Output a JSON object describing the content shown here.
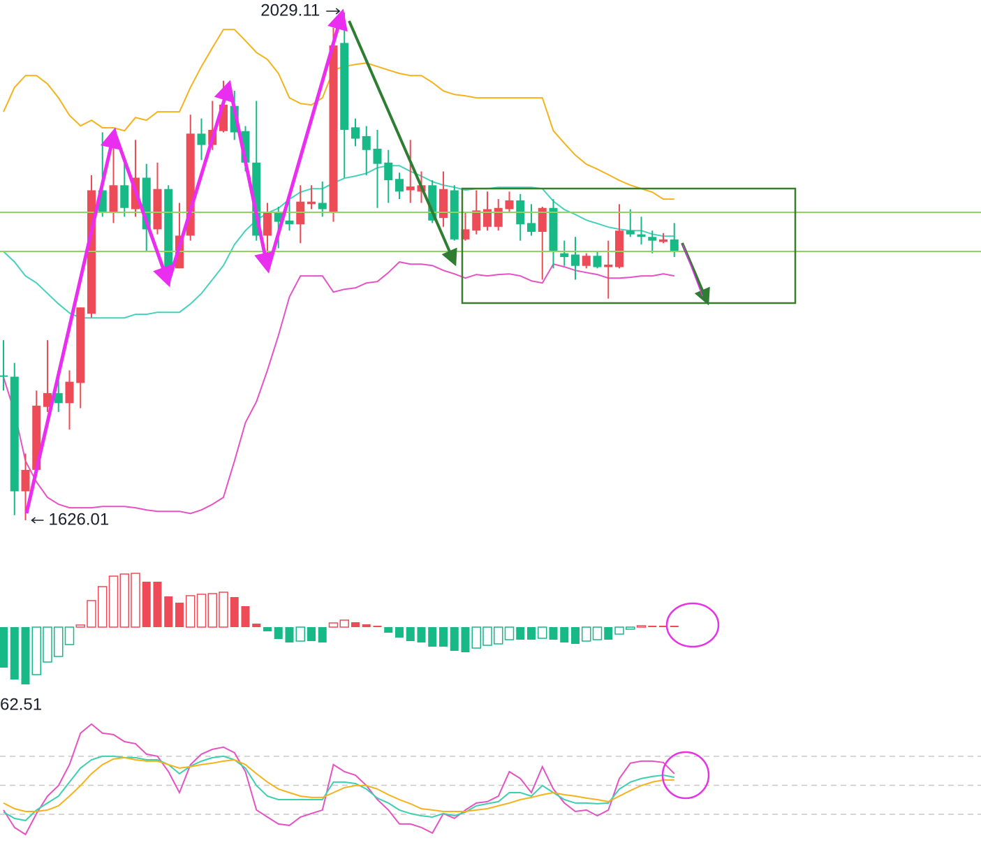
{
  "chart_data": [
    {
      "type": "candlestick",
      "annotations": [
        "2029.11",
        "1626.01"
      ],
      "up_color": "#ec4b57",
      "down_color": "#17b987",
      "ylim": [
        1595.5,
        2039.1
      ],
      "open": [
        1741,
        1740,
        1649,
        1666,
        1716,
        1727,
        1719,
        1735,
        1790,
        1888,
        1870,
        1892,
        1873,
        1898,
        1857,
        1889,
        1826,
        1852,
        1933,
        1924,
        1935,
        1955,
        1935,
        1910,
        1852,
        1870,
        1864,
        1861,
        1877,
        1878,
        1870,
        2005,
        1938,
        1931,
        1921,
        1910,
        1897,
        1888,
        1887,
        1892,
        1866,
        1888,
        1849,
        1856,
        1859,
        1859,
        1873,
        1880,
        1862,
        1855,
        1874,
        1838,
        1837,
        1828,
        1836,
        1827,
        1827,
        1856,
        1853,
        1851,
        1847,
        1849
      ],
      "high": [
        1769,
        1751,
        1679,
        1729,
        1769,
        1740,
        1745,
        1795,
        1900,
        1934,
        1934,
        1914,
        1928,
        1909,
        1910,
        1892,
        1878,
        1948,
        1945,
        1959,
        1975,
        1967,
        1939,
        1959,
        1878,
        1875,
        1881,
        1892,
        1892,
        1895,
        2017,
        2029.11,
        1945,
        1939,
        1936,
        1920,
        1902,
        1928,
        1903,
        1896,
        1903,
        1892,
        1870,
        1888,
        1887,
        1881,
        1887,
        1885,
        1877,
        1875,
        1881,
        1848,
        1851,
        1838,
        1839,
        1848,
        1877,
        1873,
        1867,
        1856,
        1854,
        1862
      ],
      "low": [
        1729,
        1630,
        1626.01,
        1662,
        1712,
        1712,
        1698,
        1715,
        1787,
        1867,
        1862,
        1867,
        1867,
        1839,
        1853,
        1820,
        1826,
        1848,
        1912,
        1920,
        1934,
        1928,
        1903,
        1848,
        1828,
        1842,
        1856,
        1846,
        1873,
        1867,
        1863,
        1898,
        1923,
        1900,
        1874,
        1878,
        1881,
        1878,
        1878,
        1862,
        1859,
        1848,
        1848,
        1853,
        1856,
        1856,
        1870,
        1848,
        1852,
        1817,
        1826,
        1828,
        1817,
        1826,
        1826,
        1802,
        1826,
        1851,
        1845,
        1838,
        1846,
        1835
      ],
      "close": [
        1740,
        1649,
        1666,
        1717,
        1727,
        1719,
        1736,
        1795,
        1888,
        1870,
        1892,
        1874,
        1898,
        1857,
        1889,
        1826,
        1852,
        1933,
        1924,
        1936,
        1956,
        1934,
        1910,
        1852,
        1870,
        1863,
        1861,
        1879,
        1879,
        1873,
        2003,
        1936,
        1929,
        1920,
        1909,
        1896,
        1887,
        1891,
        1892,
        1864,
        1889,
        1849,
        1857,
        1872,
        1873,
        1874,
        1880,
        1861,
        1855,
        1874,
        1839,
        1835,
        1828,
        1836,
        1827,
        1829,
        1856,
        1853,
        1851,
        1848,
        1849,
        1839
      ],
      "series": [
        {
          "color": "#f5b21b",
          "values": [
            1950.3,
            1969.7,
            1979.1,
            1979.1,
            1972.5,
            1961.4,
            1947.5,
            1939.2,
            1943.6,
            1937.6,
            1937.6,
            1935.3,
            1945.8,
            1943.6,
            1950.3,
            1950.3,
            1950.3,
            1969.7,
            1986.3,
            2001.3,
            2015.7,
            2015.7,
            2006.8,
            1997.4,
            1991.9,
            1980.8,
            1961.4,
            1956.9,
            1955.8,
            1961.4,
            1983.5,
            1986.3,
            1988,
            1989.1,
            1986.3,
            1983.5,
            1980.8,
            1979.1,
            1979.1,
            1973.6,
            1966.9,
            1964.1,
            1963,
            1961.4,
            1961.4,
            1961.4,
            1961.4,
            1961.4,
            1961.4,
            1961.4,
            1935.3,
            1925.3,
            1915.9,
            1908.7,
            1904.8,
            1900.4,
            1895.9,
            1892.1,
            1889.3,
            1886.5,
            1881,
            1881
          ]
        },
        {
          "color": "#45d1bb",
          "values": [
            1839.4,
            1831.1,
            1820,
            1814.4,
            1806.1,
            1797.8,
            1790.6,
            1786.7,
            1786.7,
            1786.7,
            1786.7,
            1786.7,
            1789.5,
            1789.5,
            1791.1,
            1791.1,
            1791.1,
            1797.8,
            1806.1,
            1817.2,
            1828.3,
            1844.9,
            1856,
            1864.3,
            1869.9,
            1873.8,
            1880.9,
            1886.5,
            1889.3,
            1889.3,
            1893.7,
            1897.6,
            1899.3,
            1901.5,
            1905.9,
            1907.6,
            1907.6,
            1903.1,
            1899.3,
            1894.8,
            1892.1,
            1890.4,
            1888.2,
            1889.3,
            1889.3,
            1890.4,
            1890.4,
            1890.4,
            1890.4,
            1889.3,
            1879.3,
            1872.7,
            1868.8,
            1864.3,
            1861.6,
            1858.8,
            1857.1,
            1856,
            1856,
            1853.2,
            1851.6,
            1851.6
          ]
        },
        {
          "color": "#e552c4",
          "values": [
            1739.6,
            1711.8,
            1673,
            1656.4,
            1644.2,
            1638.7,
            1635.9,
            1635.9,
            1635.9,
            1637,
            1637,
            1637,
            1635.9,
            1634.2,
            1633.1,
            1633.1,
            1633.1,
            1631.4,
            1634.2,
            1638.7,
            1644.2,
            1673,
            1703.5,
            1720.2,
            1745.1,
            1772.8,
            1803.3,
            1820,
            1820,
            1820,
            1807.2,
            1809.4,
            1810.5,
            1814.4,
            1815.5,
            1822.7,
            1831.1,
            1829.4,
            1829.4,
            1828.3,
            1824.4,
            1821.6,
            1818.3,
            1821.1,
            1820,
            1821.1,
            1821.6,
            1820,
            1816.1,
            1814.4,
            1829.4,
            1827.2,
            1824.4,
            1822.7,
            1821.1,
            1818.3,
            1818.3,
            1818.9,
            1820,
            1820,
            1821.6,
            1820
          ]
        }
      ]
    },
    {
      "type": "bar",
      "up_color": "#ec4b57",
      "down_color": "#17b987",
      "ylim": [
        -10.2,
        9.8
      ],
      "values": [
        -5.8,
        -7.5,
        -8.2,
        -6.8,
        -5,
        -4.2,
        -2.5,
        0.3,
        3.8,
        5.8,
        7.3,
        7.6,
        7.7,
        6.5,
        6.5,
        4.4,
        3.5,
        4.5,
        4.7,
        4.8,
        5,
        4.3,
        3,
        0.5,
        -0.6,
        -1.7,
        -2.2,
        -2,
        -2,
        -2.2,
        0.6,
        1,
        0.7,
        0.4,
        0.2,
        -0.8,
        -1.5,
        -2,
        -2.2,
        -2.8,
        -2.8,
        -3.4,
        -3.6,
        -3,
        -2.6,
        -2.4,
        -1.8,
        -1.8,
        -1.8,
        -1.6,
        -1.8,
        -2.2,
        -2.4,
        -2,
        -1.8,
        -1.8,
        -1,
        -0.3,
        0.2,
        0.2,
        0.2,
        0.2
      ]
    },
    {
      "type": "line",
      "label": "62.51",
      "label_color": "#e552c4",
      "ylim": [
        -4.6,
        114.7
      ],
      "hlines": [
        80,
        50,
        20
      ],
      "series": [
        {
          "color": "#e552c4",
          "values": [
            24.4,
            6.3,
            -0.9,
            20.8,
            38.8,
            49.7,
            71.4,
            103.9,
            113.3,
            103.9,
            102.5,
            95.2,
            93.1,
            82.2,
            80.1,
            64.1,
            42.4,
            71.4,
            82.2,
            87.3,
            89.5,
            83.7,
            64.1,
            24.4,
            17.1,
            9.9,
            8.5,
            17.1,
            20.8,
            24.4,
            71.4,
            64.1,
            60.5,
            49.7,
            35.2,
            24.4,
            9.9,
            9.9,
            6.3,
            0.5,
            20.8,
            15.7,
            24.4,
            31.6,
            33.1,
            38.8,
            64.1,
            56.9,
            42.4,
            69.2,
            46.1,
            31.6,
            22.9,
            24.4,
            18.5,
            24.4,
            56.9,
            72.9,
            75,
            75,
            73.6,
            62
          ]
        },
        {
          "color": "#3dcfb0",
          "values": [
            22.2,
            15.7,
            13.5,
            24.4,
            31.6,
            38.8,
            53.3,
            67.8,
            76.4,
            80.1,
            80.1,
            78.6,
            78.6,
            76.4,
            76.4,
            71.4,
            62,
            69.9,
            75,
            78.6,
            80.1,
            76.4,
            67.8,
            49.7,
            38.8,
            35.2,
            35.2,
            35.2,
            35.2,
            35.2,
            53.3,
            53.3,
            51.8,
            46.1,
            36.7,
            31.6,
            24.4,
            20.8,
            18.5,
            17.1,
            20.8,
            18.5,
            22.2,
            28.7,
            30.9,
            33.1,
            42.4,
            42.4,
            38.8,
            49.7,
            42.4,
            35.2,
            31.6,
            31.6,
            30.9,
            31.6,
            46.1,
            53.3,
            56.9,
            59.1,
            60.5,
            58.3
          ]
        },
        {
          "color": "#f5b21b",
          "values": [
            31.6,
            25.8,
            22.9,
            22.9,
            24.4,
            28.7,
            38.8,
            49.7,
            62,
            71.4,
            77.2,
            78.6,
            76.4,
            75,
            75,
            71.4,
            67.8,
            69.2,
            71.4,
            72.9,
            75,
            76.4,
            71.4,
            62,
            53.3,
            46.1,
            42.4,
            38.8,
            37.4,
            37.4,
            42.4,
            47.5,
            49.7,
            49.7,
            46.1,
            40.2,
            35.2,
            30.9,
            25.8,
            24.4,
            22.9,
            22.9,
            22.9,
            24.4,
            25.8,
            28.7,
            31.6,
            35.2,
            37.4,
            40.2,
            42.4,
            40.2,
            38.8,
            36.7,
            35.2,
            33.1,
            38.8,
            44.6,
            49.7,
            53.3,
            55.5,
            55.5
          ]
        }
      ]
    }
  ]
}
